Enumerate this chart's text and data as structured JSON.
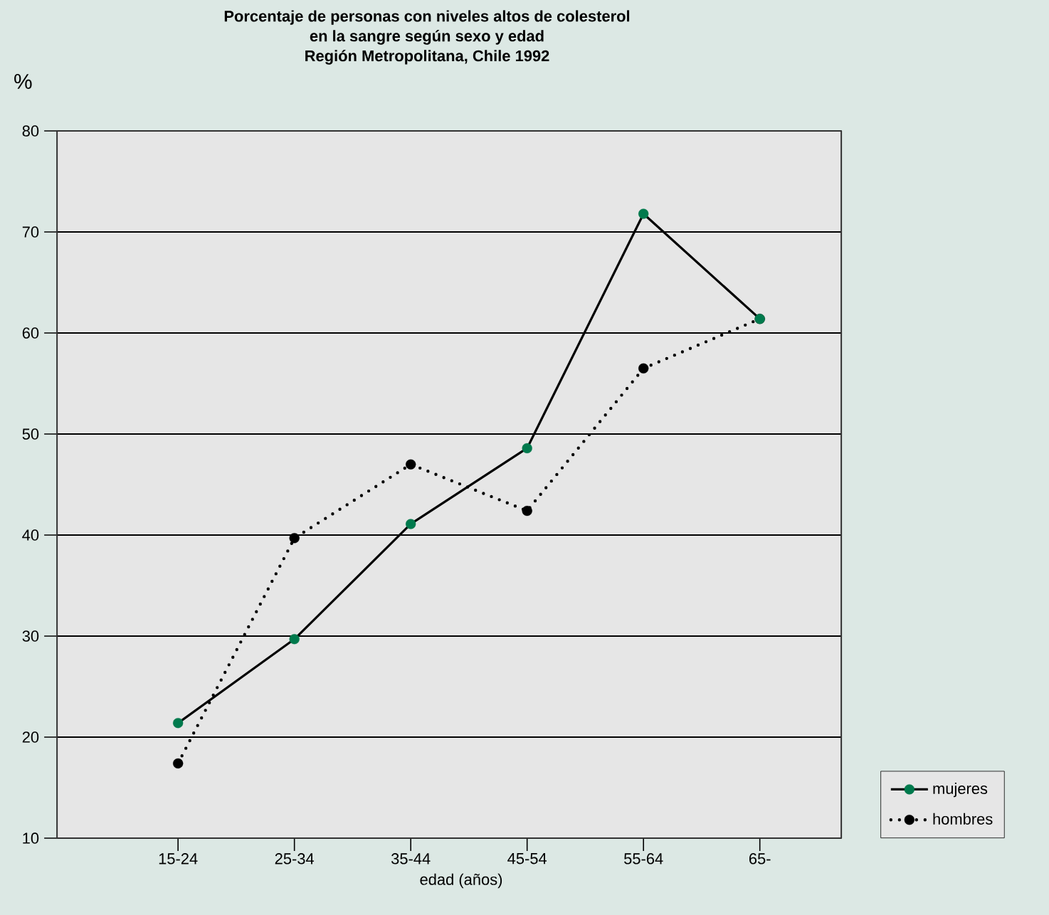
{
  "chart_data": {
    "type": "line",
    "title": "Porcentaje de personas con niveles altos de colesterol\nen la sangre según sexo y edad\nRegión Metropolitana, Chile 1992",
    "ylabel": "%",
    "xlabel": "edad (años)",
    "categories": [
      "15-24",
      "25-34",
      "35-44",
      "45-54",
      "55-64",
      "65-"
    ],
    "series": [
      {
        "name": "mujeres",
        "color": "#007a4d",
        "line_style": "solid",
        "values": [
          21.4,
          29.7,
          41.1,
          48.6,
          71.8,
          61.4
        ]
      },
      {
        "name": "hombres",
        "color": "#000000",
        "line_style": "dotted",
        "values": [
          17.4,
          39.7,
          47.0,
          42.4,
          56.5,
          61.4
        ]
      }
    ],
    "ylim": [
      10,
      80
    ],
    "yticks": [
      10,
      20,
      30,
      40,
      50,
      60,
      70,
      80
    ],
    "grid": "y",
    "legend": "right",
    "marker": "circle"
  }
}
